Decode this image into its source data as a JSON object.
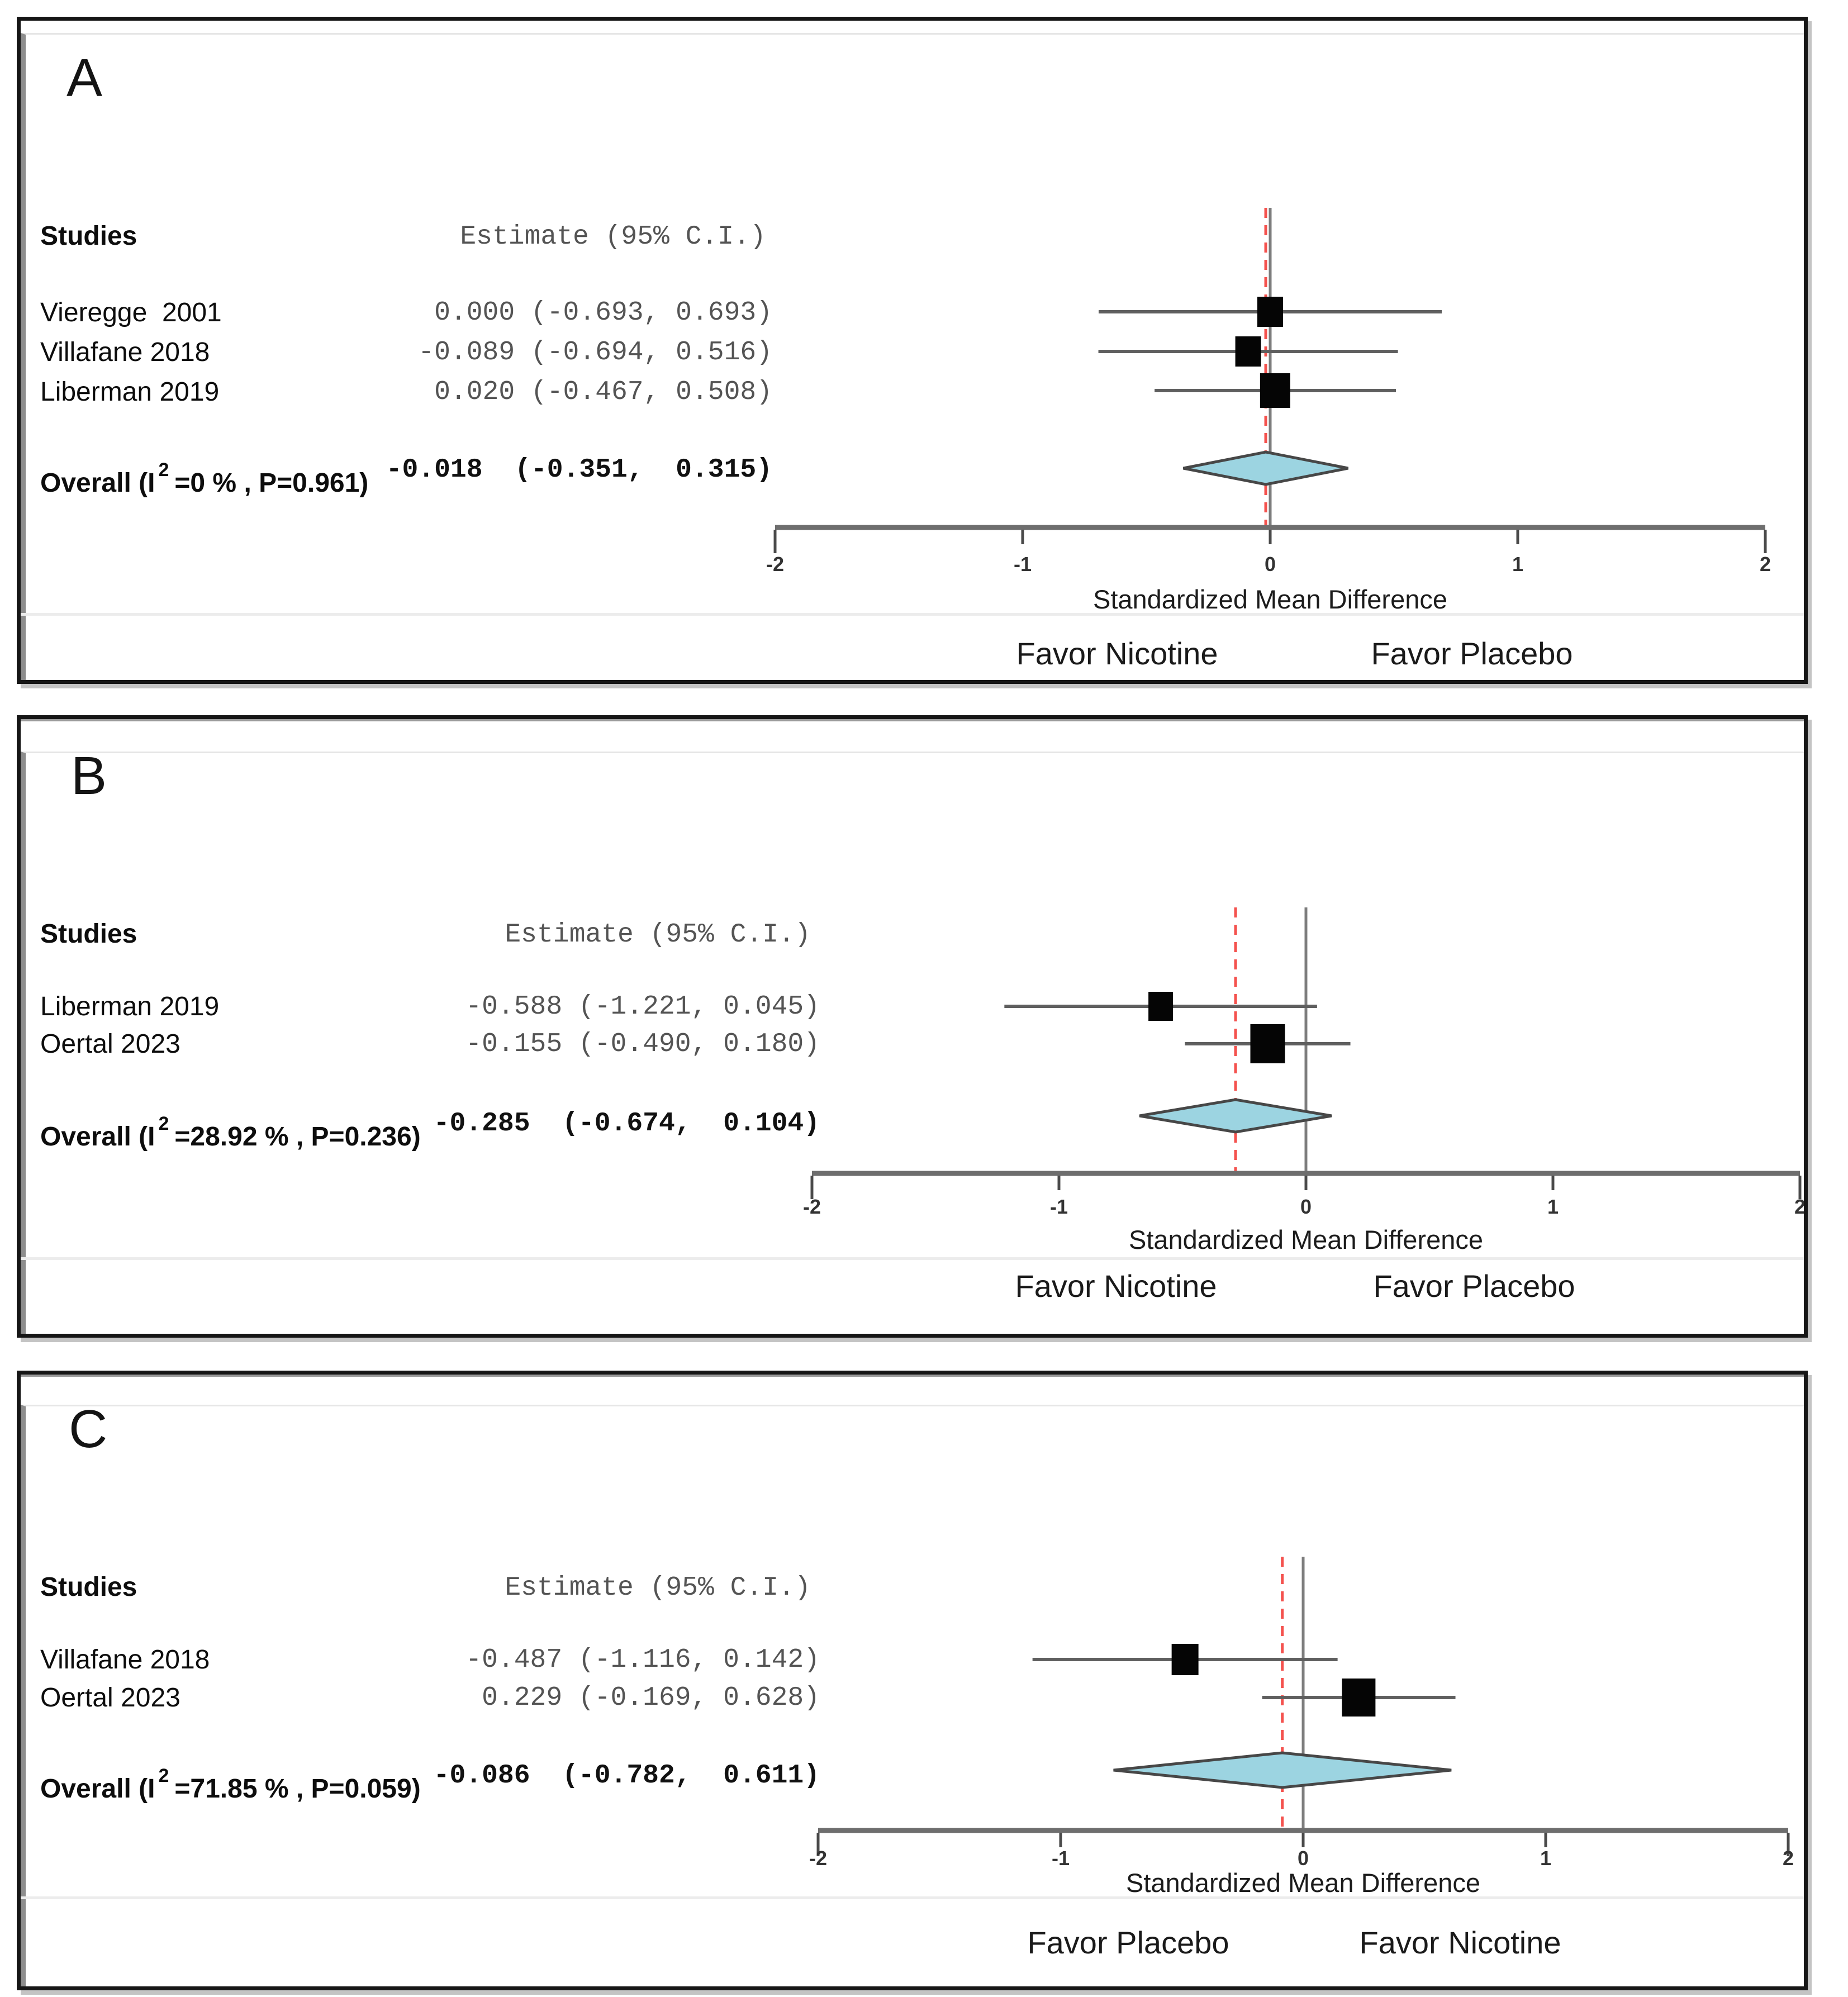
{
  "colors": {
    "diamond_fill": "#9cd4e1",
    "diamond_stroke": "#474747",
    "reference_line_red": "#f4524e",
    "zero_line_gray": "#7d7d7d",
    "axis": "#6e6e6e",
    "tick": "#4a4a4a",
    "tick_label": "#333333",
    "ci_line": "#5f5f5f",
    "square": "#050505",
    "separator": "#ececec",
    "panel_border": "#161616"
  },
  "panels": [
    {
      "label": "A",
      "studies_header": "Studies",
      "estimate_header": "Estimate (95% C.I.)",
      "rows": [
        {
          "study": "Vieregge  2001",
          "estimate": "0.000 (-0.693, 0.693)"
        },
        {
          "study": "Villafane 2018",
          "estimate": "-0.089 (-0.694, 0.516)"
        },
        {
          "study": "Liberman 2019",
          "estimate": "0.020 (-0.467, 0.508)"
        }
      ],
      "overall": {
        "prefix": "Overall (I",
        "sup": "2",
        "suffix": "=0 % , P=0.961)",
        "estimate": "-0.018  (-0.351,  0.315)"
      },
      "axis_label": "Standardized Mean Difference",
      "favor_left": "Favor Nicotine",
      "favor_right": "Favor Placebo"
    },
    {
      "label": "B",
      "studies_header": "Studies",
      "estimate_header": "Estimate (95% C.I.)",
      "rows": [
        {
          "study": "Liberman 2019",
          "estimate": "-0.588 (-1.221, 0.045)"
        },
        {
          "study": "Oertal 2023",
          "estimate": "-0.155 (-0.490, 0.180)"
        }
      ],
      "overall": {
        "prefix": "Overall (I",
        "sup": "2",
        "suffix": "=28.92 % , P=0.236)",
        "estimate": "-0.285  (-0.674,  0.104)"
      },
      "axis_label": "Standardized Mean Difference",
      "favor_left": "Favor Nicotine",
      "favor_right": "Favor Placebo"
    },
    {
      "label": "C",
      "studies_header": "Studies",
      "estimate_header": "Estimate (95% C.I.)",
      "rows": [
        {
          "study": "Villafane 2018",
          "estimate": "-0.487 (-1.116, 0.142)"
        },
        {
          "study": "Oertal 2023",
          "estimate": "0.229 (-0.169, 0.628)"
        }
      ],
      "overall": {
        "prefix": "Overall (I",
        "sup": "2",
        "suffix": "=71.85 % , P=0.059)",
        "estimate": "-0.086  (-0.782,  0.611)"
      },
      "axis_label": "Standardized Mean Difference",
      "favor_left": "Favor Placebo",
      "favor_right": "Favor Nicotine"
    }
  ],
  "chart_data": [
    {
      "type": "forest",
      "panel": "A",
      "title": "",
      "xlabel": "Standardized Mean Difference",
      "x_ticks": [
        -2,
        -1,
        0,
        1,
        2
      ],
      "xlim": [
        -2,
        2
      ],
      "studies": [
        "Vieregge 2001",
        "Villafane 2018",
        "Liberman 2019"
      ],
      "estimates": [
        0.0,
        -0.089,
        0.02
      ],
      "ci_low": [
        -0.693,
        -0.694,
        -0.467
      ],
      "ci_high": [
        0.693,
        0.516,
        0.508
      ],
      "overall": {
        "estimate": -0.018,
        "ci_low": -0.351,
        "ci_high": 0.315,
        "i2_percent": 0,
        "p_value": 0.961
      },
      "zero_line": 0,
      "reference_line": -0.018,
      "favor_left": "Favor Nicotine",
      "favor_right": "Favor Placebo"
    },
    {
      "type": "forest",
      "panel": "B",
      "title": "",
      "xlabel": "Standardized Mean Difference",
      "x_ticks": [
        -2,
        -1,
        0,
        1,
        2
      ],
      "xlim": [
        -2,
        2
      ],
      "studies": [
        "Liberman 2019",
        "Oertal 2023"
      ],
      "estimates": [
        -0.588,
        -0.155
      ],
      "ci_low": [
        -1.221,
        -0.49
      ],
      "ci_high": [
        0.045,
        0.18
      ],
      "overall": {
        "estimate": -0.285,
        "ci_low": -0.674,
        "ci_high": 0.104,
        "i2_percent": 28.92,
        "p_value": 0.236
      },
      "zero_line": 0,
      "reference_line": -0.285,
      "favor_left": "Favor Nicotine",
      "favor_right": "Favor Placebo"
    },
    {
      "type": "forest",
      "panel": "C",
      "title": "",
      "xlabel": "Standardized Mean Difference",
      "x_ticks": [
        -2,
        -1,
        0,
        1,
        2
      ],
      "xlim": [
        -2,
        2
      ],
      "studies": [
        "Villafane 2018",
        "Oertal 2023"
      ],
      "estimates": [
        -0.487,
        0.229
      ],
      "ci_low": [
        -1.116,
        -0.169
      ],
      "ci_high": [
        0.142,
        0.628
      ],
      "overall": {
        "estimate": -0.086,
        "ci_low": -0.782,
        "ci_high": 0.611,
        "i2_percent": 71.85,
        "p_value": 0.059
      },
      "zero_line": 0,
      "reference_line": -0.086,
      "favor_left": "Favor Placebo",
      "favor_right": "Favor Nicotine"
    }
  ]
}
